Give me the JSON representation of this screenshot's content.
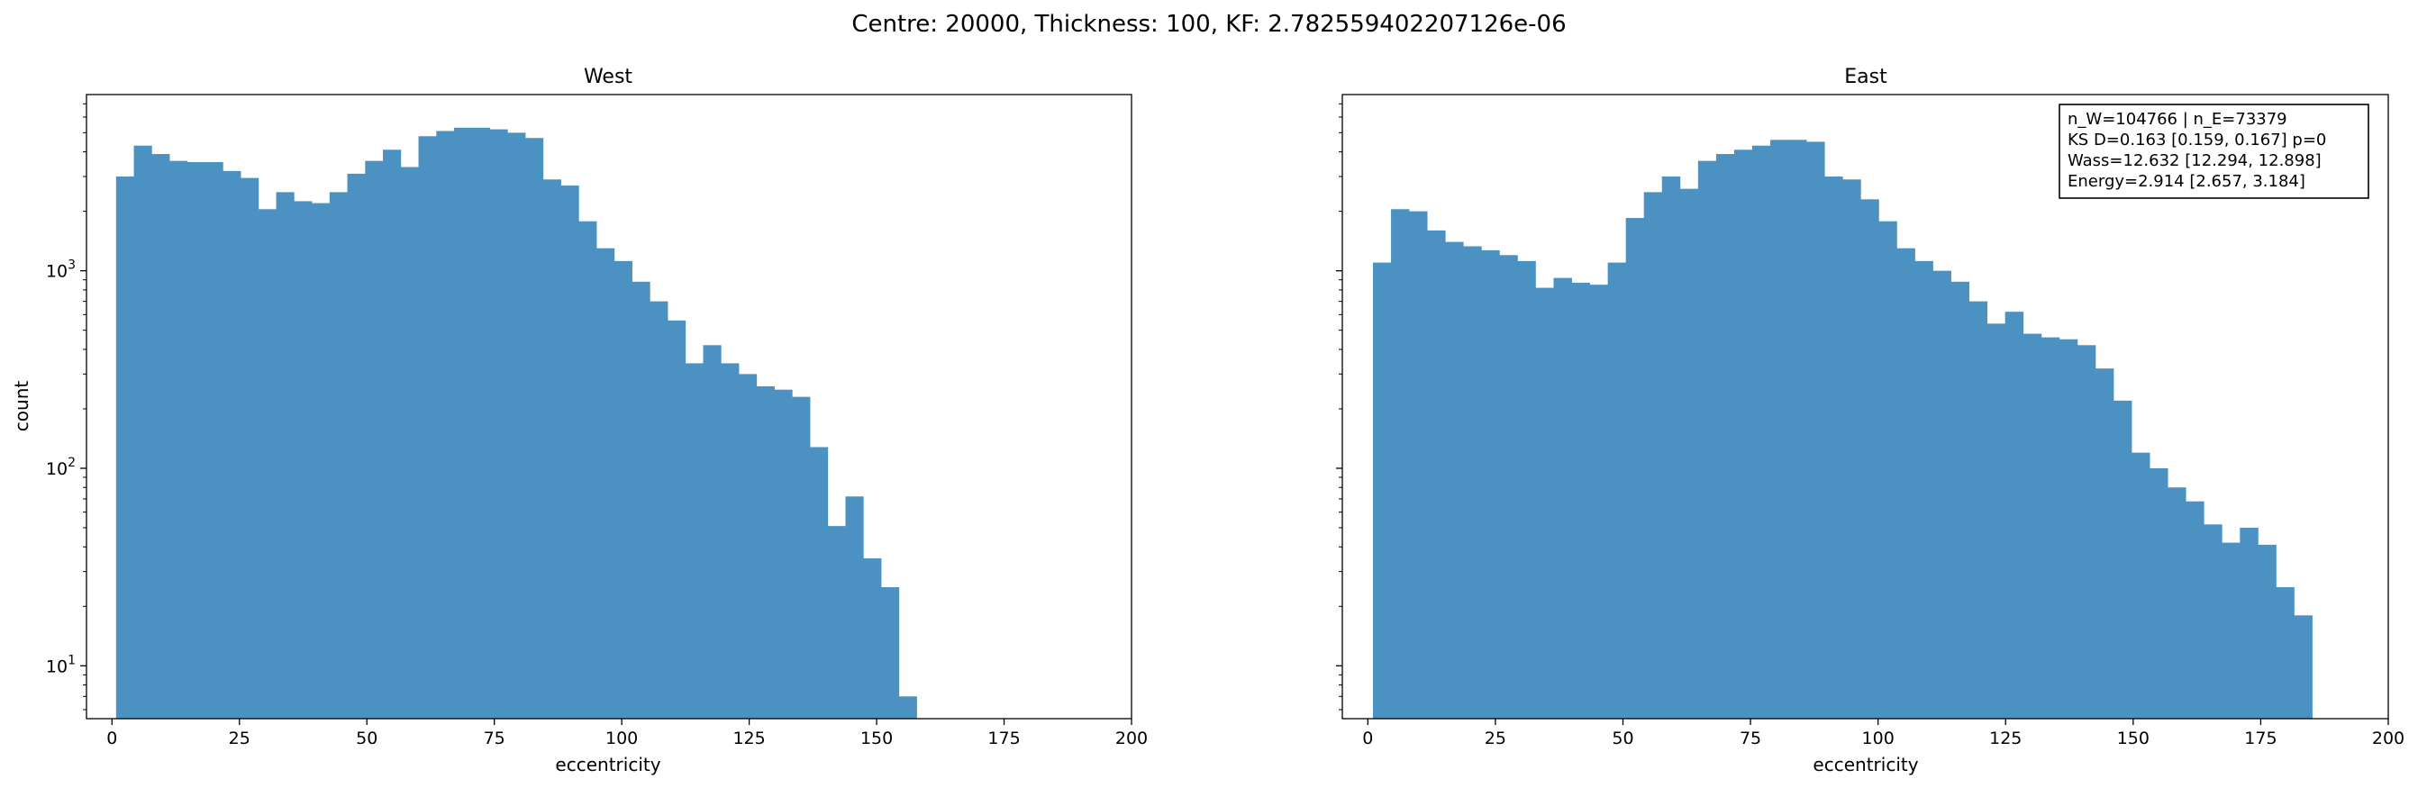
{
  "figure": {
    "suptitle": "Centre: 20000, Thickness: 100, KF: 2.782559402207126e-06"
  },
  "chart_data": [
    {
      "type": "bar",
      "title": "West",
      "xlabel": "eccentricity",
      "ylabel": "count",
      "yscale": "log",
      "xlim": [
        -5,
        200
      ],
      "ylim": [
        5.4,
        7800
      ],
      "xticks": [
        0,
        25,
        50,
        75,
        100,
        125,
        150,
        175,
        200
      ],
      "yticks": [
        10,
        100,
        1000
      ],
      "ytick_labels": [
        "10^1",
        "10^2",
        "10^3"
      ],
      "color": "#4b92c3",
      "bin_start": 0.8,
      "bin_width": 3.49,
      "values": [
        3000,
        4300,
        3900,
        3600,
        3550,
        3550,
        3200,
        2950,
        2050,
        2500,
        2250,
        2200,
        2500,
        3100,
        3600,
        4100,
        3350,
        4800,
        5100,
        5300,
        5300,
        5200,
        5000,
        4700,
        2900,
        2700,
        1780,
        1300,
        1120,
        880,
        700,
        560,
        340,
        420,
        340,
        300,
        260,
        250,
        230,
        128,
        51,
        72,
        35,
        25,
        7
      ]
    },
    {
      "type": "bar",
      "title": "East",
      "xlabel": "eccentricity",
      "ylabel": "",
      "yscale": "log",
      "xlim": [
        -5,
        200
      ],
      "ylim": [
        5.4,
        7800
      ],
      "xticks": [
        0,
        25,
        50,
        75,
        100,
        125,
        150,
        175,
        200
      ],
      "color": "#4b92c3",
      "bin_start": 1.0,
      "bin_width": 3.54,
      "values": [
        1100,
        2050,
        2000,
        1600,
        1400,
        1330,
        1270,
        1200,
        1120,
        820,
        920,
        870,
        850,
        1100,
        1850,
        2500,
        3000,
        2600,
        3600,
        3900,
        4100,
        4300,
        4600,
        4600,
        4500,
        3000,
        2900,
        2300,
        1780,
        1300,
        1120,
        1000,
        880,
        700,
        540,
        620,
        480,
        460,
        450,
        420,
        320,
        220,
        120,
        100,
        80,
        68,
        52,
        42,
        50,
        41,
        25,
        18
      ],
      "annotation": [
        "n_W=104766 | n_E=73379",
        "KS D=0.163 [0.159, 0.167]  p=0",
        "Wass=12.632 [12.294, 12.898]",
        "Energy=2.914 [2.657, 3.184]"
      ]
    }
  ]
}
